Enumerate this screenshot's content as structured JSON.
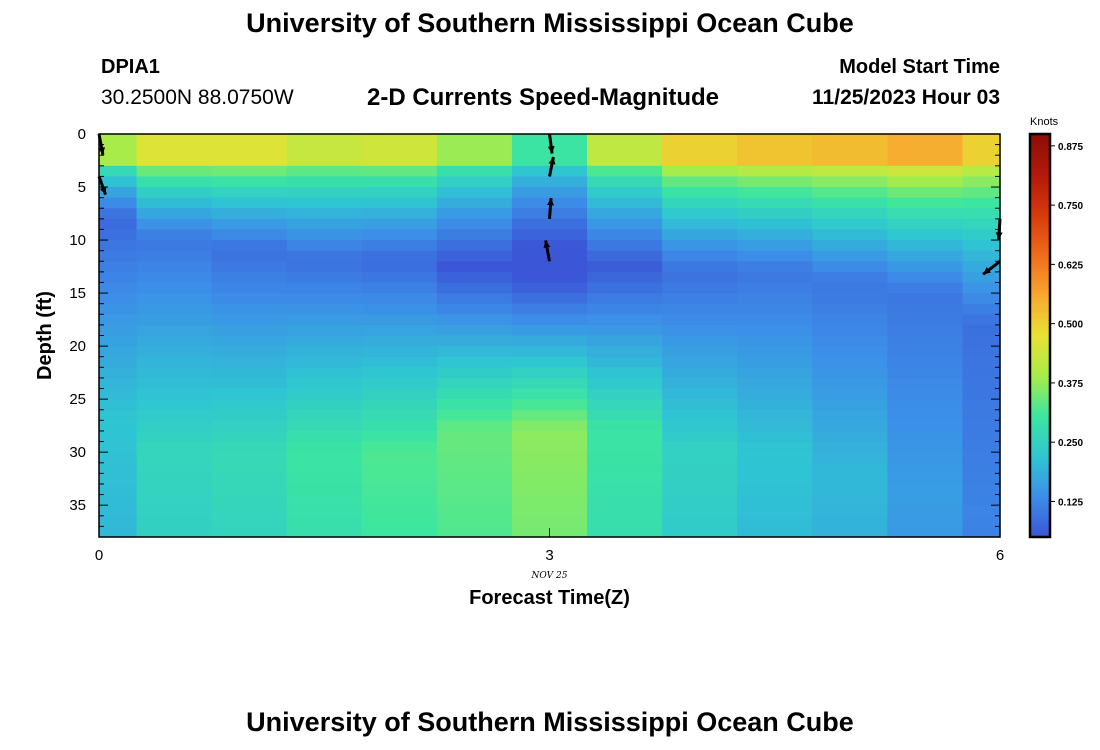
{
  "page": {
    "title": "University of Southern Mississippi Ocean Cube",
    "bottom_title": "University of Southern Mississippi Ocean Cube",
    "station_id": "DPIA1",
    "station_coords": "30.2500N  88.0750W",
    "model_start_label": "Model Start Time",
    "model_start_time": "11/25/2023 Hour 03"
  },
  "colors": {
    "scale": [
      "#3b56d6",
      "#3c8ee8",
      "#2fc6d2",
      "#3ce6a0",
      "#a8ec4a",
      "#e8e233",
      "#f7a72f",
      "#ef6b1b",
      "#d63a0c",
      "#b3180a",
      "#8a0e06"
    ],
    "vector": "#000000"
  },
  "chart_data": {
    "type": "heatmap",
    "title": "2-D Currents Speed-Magnitude",
    "xlabel": "Forecast Time(Z)",
    "ylabel": "Depth (ft)",
    "x_ticks": [
      "0",
      "3",
      "6"
    ],
    "x_tick_values": [
      0,
      3,
      6
    ],
    "x_sublabel": "NOV 25",
    "y_ticks": [
      "0",
      "5",
      "10",
      "15",
      "20",
      "25",
      "30",
      "35"
    ],
    "y_tick_values": [
      0,
      5,
      10,
      15,
      20,
      25,
      30,
      35
    ],
    "xlim": [
      0,
      6
    ],
    "ylim": [
      0,
      38
    ],
    "colorbar": {
      "unit": "Knots",
      "ticks": [
        "0.125",
        "0.250",
        "0.375",
        "0.500",
        "0.625",
        "0.750",
        "0.875"
      ],
      "tick_values": [
        0.125,
        0.25,
        0.375,
        0.5,
        0.625,
        0.75,
        0.875
      ],
      "range": [
        0.05,
        0.9
      ]
    },
    "times": [
      0,
      0.5,
      1,
      1.5,
      2,
      2.5,
      3,
      3.5,
      4,
      4.5,
      5,
      5.5,
      6
    ],
    "depth_profiles": [
      {
        "time": 0,
        "surface": 0.39,
        "min_depth": 8,
        "min": 0.08,
        "bottom_depth": 27,
        "bottom": 0.22
      },
      {
        "time": 0.5,
        "surface": 0.46,
        "min_depth": 10,
        "min": 0.1,
        "bottom_depth": 30,
        "bottom": 0.26
      },
      {
        "time": 1,
        "surface": 0.46,
        "min_depth": 11,
        "min": 0.09,
        "bottom_depth": 30,
        "bottom": 0.27
      },
      {
        "time": 1.5,
        "surface": 0.43,
        "min_depth": 12,
        "min": 0.09,
        "bottom_depth": 30,
        "bottom": 0.3
      },
      {
        "time": 2,
        "surface": 0.44,
        "min_depth": 12,
        "min": 0.08,
        "bottom_depth": 30,
        "bottom": 0.32
      },
      {
        "time": 2.5,
        "surface": 0.38,
        "min_depth": 12.5,
        "min": 0.05,
        "bottom_depth": 28,
        "bottom": 0.34
      },
      {
        "time": 3,
        "surface": 0.3,
        "min_depth": 12.5,
        "min": 0.02,
        "bottom_depth": 28,
        "bottom": 0.37
      },
      {
        "time": 3.5,
        "surface": 0.42,
        "min_depth": 12.5,
        "min": 0.06,
        "bottom_depth": 28,
        "bottom": 0.3
      },
      {
        "time": 4,
        "surface": 0.5,
        "min_depth": 13,
        "min": 0.09,
        "bottom_depth": 30,
        "bottom": 0.25
      },
      {
        "time": 4.5,
        "surface": 0.52,
        "min_depth": 13,
        "min": 0.1,
        "bottom_depth": 30,
        "bottom": 0.22
      },
      {
        "time": 5,
        "surface": 0.53,
        "min_depth": 14,
        "min": 0.1,
        "bottom_depth": 32,
        "bottom": 0.2
      },
      {
        "time": 5.5,
        "surface": 0.55,
        "min_depth": 15,
        "min": 0.1,
        "bottom_depth": 34,
        "bottom": 0.16
      },
      {
        "time": 6,
        "surface": 0.5,
        "min_depth": 18,
        "min": 0.09,
        "bottom_depth": 36,
        "bottom": 0.12
      }
    ],
    "vectors": [
      {
        "time": 0,
        "depth": 0,
        "u": 0.15,
        "v": -0.8
      },
      {
        "time": 0,
        "depth": 4,
        "u": 0.25,
        "v": -0.7
      },
      {
        "time": 3,
        "depth": 0,
        "u": 0.1,
        "v": -0.75
      },
      {
        "time": 3,
        "depth": 4,
        "u": 0.15,
        "v": 0.75
      },
      {
        "time": 3,
        "depth": 8,
        "u": 0.06,
        "v": 0.8
      },
      {
        "time": 3,
        "depth": 12,
        "u": -0.15,
        "v": 0.8
      },
      {
        "time": 6,
        "depth": 8,
        "u": -0.05,
        "v": -0.8
      },
      {
        "time": 6,
        "depth": 12,
        "u": -0.65,
        "v": -0.5
      }
    ]
  }
}
